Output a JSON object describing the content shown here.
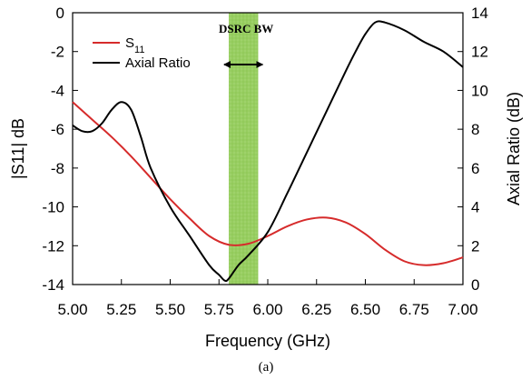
{
  "chart_data": {
    "type": "line",
    "x_unit": "GHz",
    "xlabel": "Frequency (GHz)",
    "ylabel_left": "|S11| dB",
    "ylabel_right": "Axial Ratio (dB)",
    "xlim": [
      5.0,
      7.0
    ],
    "ylim_left": [
      -14,
      0
    ],
    "ylim_right": [
      0,
      14
    ],
    "x_ticks": [
      "5.00",
      "5.25",
      "5.50",
      "5.75",
      "6.00",
      "6.25",
      "6.50",
      "6.75",
      "7.00"
    ],
    "y_left_ticks": [
      "0",
      "-2",
      "-4",
      "-6",
      "-8",
      "-10",
      "-12",
      "-14"
    ],
    "y_right_ticks": [
      "14",
      "12",
      "10",
      "8",
      "6",
      "4",
      "2",
      "0"
    ],
    "grid": false,
    "legend_position": "top-left",
    "series": [
      {
        "name": "S11",
        "axis": "left",
        "color": "#d62b2b",
        "x": [
          5.0,
          5.1,
          5.2,
          5.3,
          5.4,
          5.5,
          5.6,
          5.7,
          5.8,
          5.9,
          6.0,
          6.1,
          6.2,
          6.3,
          6.4,
          6.5,
          6.6,
          6.7,
          6.8,
          6.9,
          7.0
        ],
        "y": [
          -4.6,
          -5.5,
          -6.4,
          -7.4,
          -8.5,
          -9.6,
          -10.6,
          -11.5,
          -11.95,
          -11.9,
          -11.5,
          -11.0,
          -10.65,
          -10.55,
          -10.8,
          -11.4,
          -12.2,
          -12.8,
          -13.0,
          -12.9,
          -12.6
        ]
      },
      {
        "name": "Axial Ratio",
        "axis": "right",
        "color": "#000000",
        "x": [
          5.0,
          5.05,
          5.1,
          5.15,
          5.2,
          5.25,
          5.3,
          5.35,
          5.4,
          5.5,
          5.6,
          5.7,
          5.75,
          5.78,
          5.8,
          5.85,
          5.9,
          6.0,
          6.1,
          6.2,
          6.3,
          6.4,
          6.45,
          6.5,
          6.55,
          6.6,
          6.7,
          6.8,
          6.9,
          7.0
        ],
        "y": [
          8.2,
          7.9,
          7.9,
          8.3,
          9.0,
          9.4,
          9.0,
          7.6,
          6.0,
          4.0,
          2.5,
          1.0,
          0.5,
          0.2,
          0.3,
          1.0,
          1.5,
          2.7,
          4.7,
          6.8,
          8.9,
          11.0,
          12.0,
          12.9,
          13.5,
          13.5,
          13.1,
          12.5,
          12.0,
          11.2
        ]
      }
    ],
    "band": {
      "label": "DSRC BW",
      "x_start": 5.8,
      "x_end": 5.95,
      "color": "#9ed26a"
    },
    "legend": [
      {
        "main": "S",
        "sub": "11",
        "color": "#d62b2b"
      },
      {
        "main": "Axial Ratio",
        "sub": "",
        "color": "#000000"
      }
    ],
    "caption": "(a)"
  }
}
